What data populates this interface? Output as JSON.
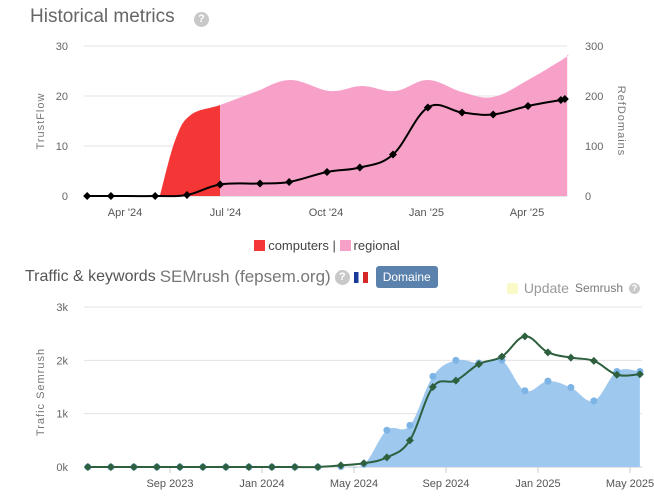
{
  "header1": {
    "title": "Historical metrics",
    "help_icon": "?"
  },
  "header2": {
    "title": "Traffic & keywords",
    "source": "SEMrush (fepsem.org)",
    "help_icon": "?",
    "button": "Domaine",
    "update_label": "Update",
    "update_source": "Semrush"
  },
  "legend1": {
    "items": [
      {
        "label": "computers",
        "color": "#f53636"
      },
      {
        "label": "regional",
        "color": "#f7a1c8"
      }
    ],
    "separator": "|"
  },
  "chart_data": [
    {
      "type": "area",
      "title": "Historical metrics",
      "ylabel": "TrustFlow",
      "y2label": "RefDomains",
      "ylim": [
        0,
        30
      ],
      "y2lim": [
        0,
        300
      ],
      "yticks": [
        "0",
        "10",
        "20",
        "30"
      ],
      "y2ticks": [
        "0",
        "100",
        "200",
        "300"
      ],
      "xticks": [
        {
          "m": 3,
          "label": "Apr '24"
        },
        {
          "m": 6,
          "label": "Jul '24"
        },
        {
          "m": 9,
          "label": "Oct '24"
        },
        {
          "m": 12,
          "label": "Jan '25"
        },
        {
          "m": 15,
          "label": "Apr '25"
        }
      ],
      "x_unit": "months since Jan 2024",
      "refdomains": {
        "x": [
          4.04,
          4.5,
          4.96,
          5.84,
          6.88,
          7.93,
          9.12,
          10.07,
          11.06,
          12.04,
          13.06,
          13.99,
          15.03,
          16.13,
          16.2
        ],
        "values": [
          0,
          112,
          162,
          182,
          208,
          232,
          210,
          220,
          210,
          232,
          208,
          198,
          232,
          276,
          282
        ],
        "split_at": 5.84,
        "colors": [
          "#f53636",
          "#f7a1c8"
        ]
      },
      "trustflow": {
        "x": [
          1.87,
          2.58,
          3.9,
          4.85,
          5.84,
          7.03,
          7.9,
          9.03,
          10.01,
          11.0,
          12.04,
          13.06,
          13.99,
          15.03,
          16.01,
          16.13
        ],
        "values": [
          0,
          0,
          0,
          0.2,
          2.3,
          2.5,
          2.8,
          4.8,
          5.7,
          8.3,
          17.7,
          16.7,
          16.3,
          18,
          19.2,
          19.4
        ],
        "color": "#000000"
      }
    },
    {
      "type": "area",
      "title": "Traffic & keywords SEMrush (fepsem.org)",
      "ylabel": "Trafic Semrush",
      "ylim": [
        0,
        3000
      ],
      "yticks": [
        "0k",
        "1k",
        "2k",
        "3k"
      ],
      "xticks": [
        {
          "m": 0,
          "label": "Sep 2023"
        },
        {
          "m": 4,
          "label": "Jan 2024"
        },
        {
          "m": 8,
          "label": "May 2024"
        },
        {
          "m": 12,
          "label": "Sep 2024"
        },
        {
          "m": 16,
          "label": "Jan 2025"
        },
        {
          "m": 20,
          "label": "May 2025"
        }
      ],
      "x_unit": "months since Sep 2023",
      "x_start": -3.57,
      "series": [
        {
          "name": "traffic-area",
          "color": "#9ec8ee",
          "values": [
            0,
            0,
            0,
            0,
            0,
            0,
            0,
            0,
            0,
            0,
            0,
            10,
            50,
            690,
            780,
            1700,
            2000,
            1950,
            2000,
            1430,
            1610,
            1490,
            1240,
            1790,
            1790
          ]
        },
        {
          "name": "traffic-line",
          "color": "#2e6040",
          "values": [
            0,
            0,
            0,
            0,
            0,
            0,
            0,
            0,
            0,
            0,
            0,
            30,
            70,
            180,
            500,
            1500,
            1620,
            1930,
            2070,
            2450,
            2150,
            2050,
            1990,
            1730,
            1740
          ]
        }
      ]
    }
  ]
}
